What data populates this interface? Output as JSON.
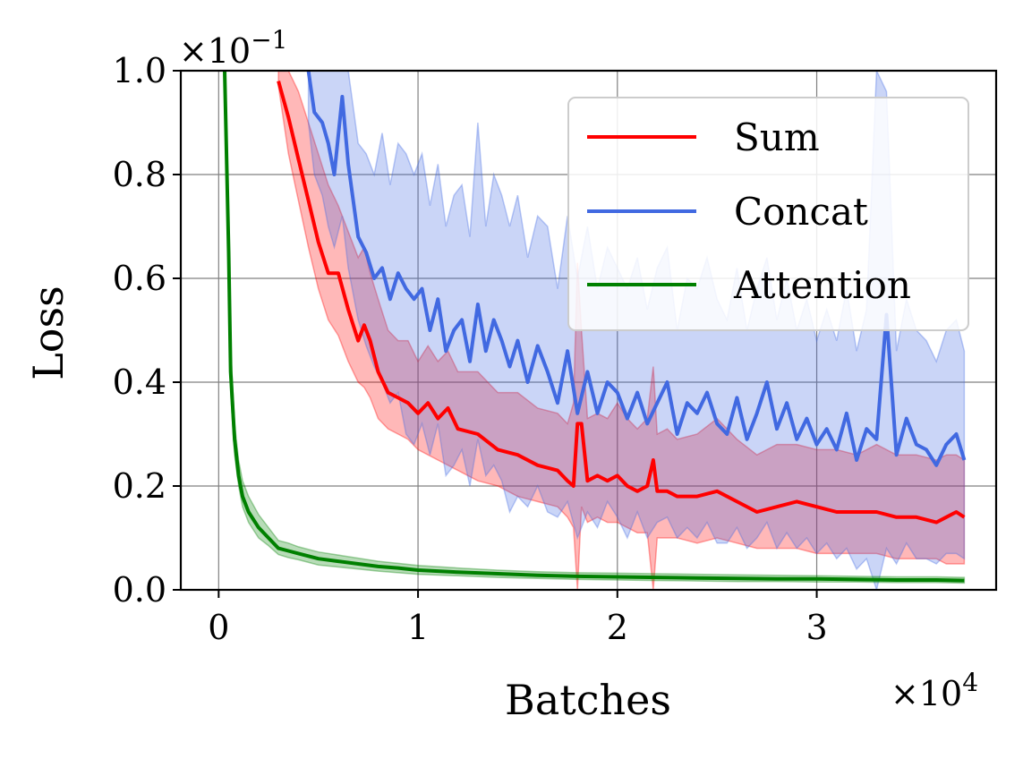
{
  "chart_data": {
    "type": "line",
    "title": "",
    "xlabel": "Batches",
    "ylabel": "Loss",
    "x_offset_label": "×10",
    "x_offset_exp": "4",
    "y_offset_label": "×10",
    "y_offset_exp": "−1",
    "xlim": [
      -0.19,
      3.9
    ],
    "ylim": [
      0,
      1.0
    ],
    "xticks": [
      0,
      1,
      2,
      3
    ],
    "xtick_labels": [
      "0",
      "1",
      "2",
      "3"
    ],
    "yticks": [
      0.0,
      0.2,
      0.4,
      0.6,
      0.8,
      1.0
    ],
    "ytick_labels": [
      "0.0",
      "0.2",
      "0.4",
      "0.6",
      "0.8",
      "1.0"
    ],
    "grid": true,
    "legend_position": "top-right",
    "series": [
      {
        "name": "Sum",
        "color": "#ff0000",
        "band_color": "#ff0000",
        "x": [
          0.3,
          0.35,
          0.4,
          0.45,
          0.5,
          0.55,
          0.6,
          0.65,
          0.7,
          0.73,
          0.76,
          0.8,
          0.85,
          0.9,
          0.95,
          1.0,
          1.05,
          1.1,
          1.15,
          1.2,
          1.3,
          1.4,
          1.5,
          1.6,
          1.7,
          1.75,
          1.78,
          1.8,
          1.82,
          1.85,
          1.9,
          1.95,
          2.0,
          2.05,
          2.1,
          2.15,
          2.18,
          2.2,
          2.25,
          2.3,
          2.4,
          2.5,
          2.6,
          2.7,
          2.8,
          2.9,
          3.0,
          3.1,
          3.2,
          3.3,
          3.4,
          3.5,
          3.6,
          3.65,
          3.7,
          3.74
        ],
        "y": [
          0.98,
          0.91,
          0.83,
          0.75,
          0.67,
          0.61,
          0.61,
          0.54,
          0.48,
          0.51,
          0.48,
          0.42,
          0.38,
          0.37,
          0.36,
          0.34,
          0.36,
          0.33,
          0.35,
          0.31,
          0.3,
          0.27,
          0.26,
          0.24,
          0.23,
          0.21,
          0.2,
          0.32,
          0.32,
          0.21,
          0.22,
          0.21,
          0.22,
          0.2,
          0.19,
          0.2,
          0.25,
          0.19,
          0.19,
          0.18,
          0.18,
          0.19,
          0.17,
          0.15,
          0.16,
          0.17,
          0.16,
          0.15,
          0.15,
          0.15,
          0.14,
          0.14,
          0.13,
          0.14,
          0.15,
          0.14
        ],
        "lower": [
          0.97,
          0.84,
          0.75,
          0.66,
          0.58,
          0.52,
          0.49,
          0.44,
          0.4,
          0.39,
          0.37,
          0.33,
          0.31,
          0.3,
          0.29,
          0.27,
          0.26,
          0.25,
          0.24,
          0.23,
          0.21,
          0.2,
          0.18,
          0.17,
          0.16,
          0.14,
          0.12,
          0.0,
          0.16,
          0.13,
          0.14,
          0.13,
          0.13,
          0.12,
          0.11,
          0.11,
          0.0,
          0.1,
          0.1,
          0.1,
          0.09,
          0.1,
          0.09,
          0.08,
          0.08,
          0.08,
          0.07,
          0.07,
          0.07,
          0.07,
          0.06,
          0.06,
          0.06,
          0.05,
          0.05,
          0.05
        ],
        "upper": [
          1.0,
          1.0,
          0.96,
          0.9,
          0.84,
          0.78,
          0.74,
          0.69,
          0.64,
          0.66,
          0.61,
          0.56,
          0.5,
          0.48,
          0.48,
          0.44,
          0.47,
          0.44,
          0.46,
          0.42,
          0.42,
          0.38,
          0.38,
          0.35,
          0.34,
          0.32,
          0.36,
          0.63,
          0.5,
          0.33,
          0.34,
          0.33,
          0.36,
          0.33,
          0.31,
          0.33,
          0.43,
          0.3,
          0.31,
          0.29,
          0.3,
          0.33,
          0.29,
          0.26,
          0.28,
          0.28,
          0.27,
          0.27,
          0.26,
          0.28,
          0.26,
          0.26,
          0.25,
          0.26,
          0.26,
          0.25
        ]
      },
      {
        "name": "Concat",
        "color": "#4169e1",
        "band_color": "#4169e1",
        "x": [
          0.45,
          0.48,
          0.52,
          0.55,
          0.58,
          0.62,
          0.65,
          0.7,
          0.74,
          0.78,
          0.82,
          0.86,
          0.9,
          0.94,
          0.98,
          1.02,
          1.06,
          1.1,
          1.14,
          1.18,
          1.22,
          1.26,
          1.3,
          1.34,
          1.38,
          1.42,
          1.46,
          1.5,
          1.55,
          1.6,
          1.65,
          1.7,
          1.75,
          1.8,
          1.85,
          1.9,
          1.95,
          2.0,
          2.05,
          2.1,
          2.15,
          2.2,
          2.25,
          2.3,
          2.35,
          2.4,
          2.45,
          2.5,
          2.55,
          2.6,
          2.65,
          2.7,
          2.75,
          2.8,
          2.85,
          2.9,
          2.95,
          3.0,
          3.05,
          3.1,
          3.15,
          3.2,
          3.25,
          3.3,
          3.35,
          3.4,
          3.45,
          3.5,
          3.55,
          3.6,
          3.65,
          3.7,
          3.74
        ],
        "y": [
          1.0,
          0.92,
          0.9,
          0.86,
          0.8,
          0.95,
          0.82,
          0.68,
          0.65,
          0.6,
          0.62,
          0.56,
          0.61,
          0.58,
          0.56,
          0.58,
          0.5,
          0.56,
          0.46,
          0.5,
          0.52,
          0.44,
          0.55,
          0.46,
          0.52,
          0.48,
          0.43,
          0.48,
          0.4,
          0.47,
          0.42,
          0.36,
          0.46,
          0.34,
          0.42,
          0.34,
          0.4,
          0.38,
          0.33,
          0.38,
          0.32,
          0.36,
          0.4,
          0.3,
          0.36,
          0.34,
          0.38,
          0.32,
          0.3,
          0.37,
          0.29,
          0.34,
          0.4,
          0.31,
          0.36,
          0.29,
          0.33,
          0.28,
          0.31,
          0.27,
          0.34,
          0.25,
          0.31,
          0.29,
          0.53,
          0.26,
          0.33,
          0.28,
          0.27,
          0.24,
          0.28,
          0.3,
          0.25
        ],
        "lower": [
          0.9,
          0.8,
          0.76,
          0.7,
          0.66,
          0.72,
          0.62,
          0.52,
          0.47,
          0.43,
          0.4,
          0.36,
          0.38,
          0.3,
          0.28,
          0.32,
          0.26,
          0.32,
          0.22,
          0.24,
          0.27,
          0.2,
          0.29,
          0.22,
          0.24,
          0.21,
          0.15,
          0.18,
          0.16,
          0.2,
          0.15,
          0.14,
          0.17,
          0.1,
          0.15,
          0.12,
          0.17,
          0.14,
          0.1,
          0.15,
          0.1,
          0.13,
          0.14,
          0.1,
          0.12,
          0.1,
          0.13,
          0.09,
          0.09,
          0.12,
          0.08,
          0.1,
          0.13,
          0.08,
          0.11,
          0.08,
          0.1,
          0.07,
          0.09,
          0.06,
          0.08,
          0.04,
          0.06,
          0.0,
          0.08,
          0.05,
          0.09,
          0.06,
          0.06,
          0.05,
          0.07,
          0.07,
          0.06
        ],
        "upper": [
          1.0,
          1.0,
          1.0,
          1.0,
          1.0,
          1.0,
          1.0,
          0.86,
          0.84,
          0.8,
          0.88,
          0.78,
          0.86,
          0.84,
          0.8,
          0.84,
          0.74,
          0.82,
          0.7,
          0.76,
          0.78,
          0.68,
          0.9,
          0.7,
          0.8,
          0.76,
          0.7,
          0.76,
          0.64,
          0.72,
          0.7,
          0.58,
          0.72,
          0.6,
          0.7,
          0.58,
          0.66,
          0.62,
          0.58,
          0.64,
          0.54,
          0.62,
          0.66,
          0.5,
          0.6,
          0.58,
          0.64,
          0.56,
          0.52,
          0.62,
          0.5,
          0.58,
          0.64,
          0.52,
          0.6,
          0.5,
          0.56,
          0.48,
          0.54,
          0.48,
          0.58,
          0.46,
          0.54,
          1.0,
          0.96,
          0.46,
          0.56,
          0.5,
          0.48,
          0.44,
          0.5,
          0.52,
          0.46
        ]
      },
      {
        "name": "Attention",
        "color": "#008000",
        "band_color": "#008000",
        "x": [
          0.03,
          0.05,
          0.06,
          0.08,
          0.1,
          0.12,
          0.15,
          0.2,
          0.25,
          0.3,
          0.35,
          0.4,
          0.5,
          0.6,
          0.7,
          0.8,
          0.9,
          1.0,
          1.2,
          1.4,
          1.6,
          1.8,
          2.0,
          2.2,
          2.4,
          2.6,
          2.8,
          3.0,
          3.2,
          3.4,
          3.6,
          3.74
        ],
        "y": [
          1.0,
          0.65,
          0.42,
          0.29,
          0.22,
          0.18,
          0.15,
          0.12,
          0.1,
          0.08,
          0.075,
          0.07,
          0.06,
          0.055,
          0.05,
          0.045,
          0.042,
          0.038,
          0.034,
          0.031,
          0.028,
          0.026,
          0.025,
          0.024,
          0.023,
          0.022,
          0.021,
          0.021,
          0.02,
          0.019,
          0.019,
          0.018
        ],
        "lower": [
          1.0,
          0.6,
          0.38,
          0.26,
          0.2,
          0.16,
          0.13,
          0.1,
          0.085,
          0.068,
          0.062,
          0.058,
          0.048,
          0.044,
          0.04,
          0.036,
          0.033,
          0.03,
          0.027,
          0.024,
          0.022,
          0.02,
          0.019,
          0.018,
          0.017,
          0.016,
          0.016,
          0.015,
          0.015,
          0.014,
          0.014,
          0.013
        ],
        "upper": [
          1.0,
          0.7,
          0.47,
          0.32,
          0.25,
          0.21,
          0.18,
          0.145,
          0.12,
          0.095,
          0.09,
          0.083,
          0.073,
          0.067,
          0.061,
          0.055,
          0.051,
          0.047,
          0.042,
          0.038,
          0.035,
          0.033,
          0.032,
          0.031,
          0.03,
          0.029,
          0.028,
          0.027,
          0.026,
          0.025,
          0.025,
          0.024
        ]
      }
    ]
  }
}
